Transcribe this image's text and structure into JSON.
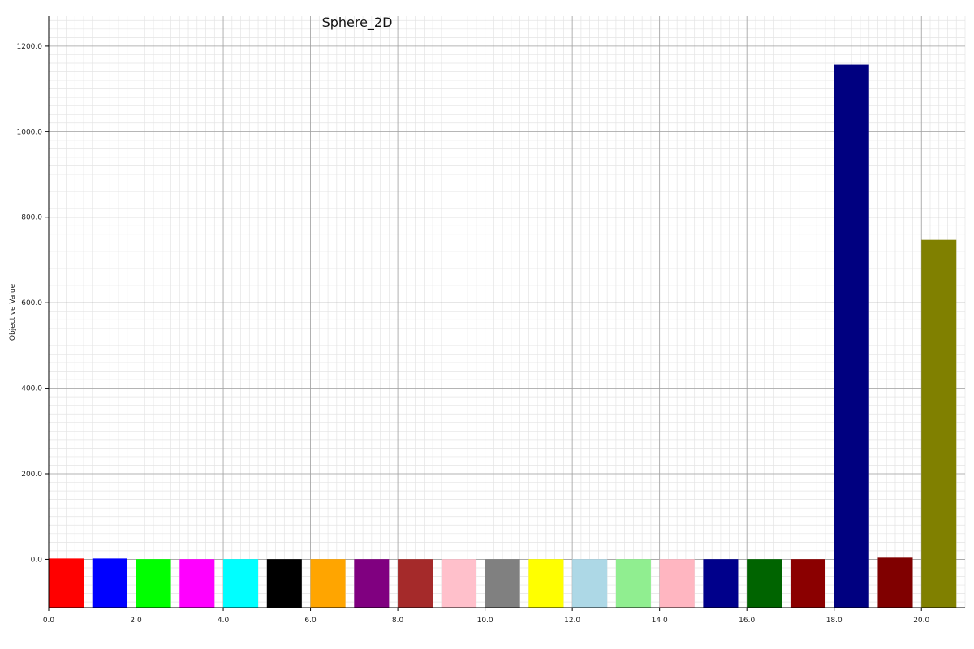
{
  "chart_data": {
    "type": "bar",
    "title": "Sphere_2D",
    "ylabel": "Objective Value",
    "xlabel": "",
    "xlim": [
      0,
      21
    ],
    "ylim": [
      -113,
      1270
    ],
    "x_ticks": [
      0,
      2,
      4,
      6,
      8,
      10,
      12,
      14,
      16,
      18,
      20
    ],
    "x_tick_labels": [
      "0.0",
      "2.0",
      "4.0",
      "6.0",
      "8.0",
      "10.0",
      "12.0",
      "14.0",
      "16.0",
      "18.0",
      "20.0"
    ],
    "y_ticks": [
      0,
      200,
      400,
      600,
      800,
      1000,
      1200
    ],
    "y_tick_labels": [
      "0.0",
      "200.0",
      "400.0",
      "600.0",
      "800.0",
      "1000.0",
      "1200.0"
    ],
    "grid": true,
    "bar_width": 0.8,
    "bars": [
      {
        "x": 0,
        "value": 2,
        "color": "#ff0000"
      },
      {
        "x": 1,
        "value": 2,
        "color": "#0000ff"
      },
      {
        "x": 2,
        "value": 0.5,
        "color": "#00ff00"
      },
      {
        "x": 3,
        "value": 0.5,
        "color": "#ff00ff"
      },
      {
        "x": 4,
        "value": 0.5,
        "color": "#00ffff"
      },
      {
        "x": 5,
        "value": 0.5,
        "color": "#000000"
      },
      {
        "x": 6,
        "value": 0.5,
        "color": "#ffa500"
      },
      {
        "x": 7,
        "value": 0.5,
        "color": "#800080"
      },
      {
        "x": 8,
        "value": 0.5,
        "color": "#a52a2a"
      },
      {
        "x": 9,
        "value": 0.5,
        "color": "#ffc0cb"
      },
      {
        "x": 10,
        "value": 0.5,
        "color": "#808080"
      },
      {
        "x": 11,
        "value": 0.5,
        "color": "#ffff00"
      },
      {
        "x": 12,
        "value": 0.5,
        "color": "#add8e6"
      },
      {
        "x": 13,
        "value": 0.5,
        "color": "#90ee90"
      },
      {
        "x": 14,
        "value": 0.5,
        "color": "#ffb6c1"
      },
      {
        "x": 15,
        "value": 0.5,
        "color": "#00008b"
      },
      {
        "x": 16,
        "value": 0.5,
        "color": "#006400"
      },
      {
        "x": 17,
        "value": 0.5,
        "color": "#8b0000"
      },
      {
        "x": 18,
        "value": 1157,
        "color": "#000080"
      },
      {
        "x": 19,
        "value": 4,
        "color": "#800000"
      },
      {
        "x": 20,
        "value": 747,
        "color": "#808000"
      }
    ]
  }
}
